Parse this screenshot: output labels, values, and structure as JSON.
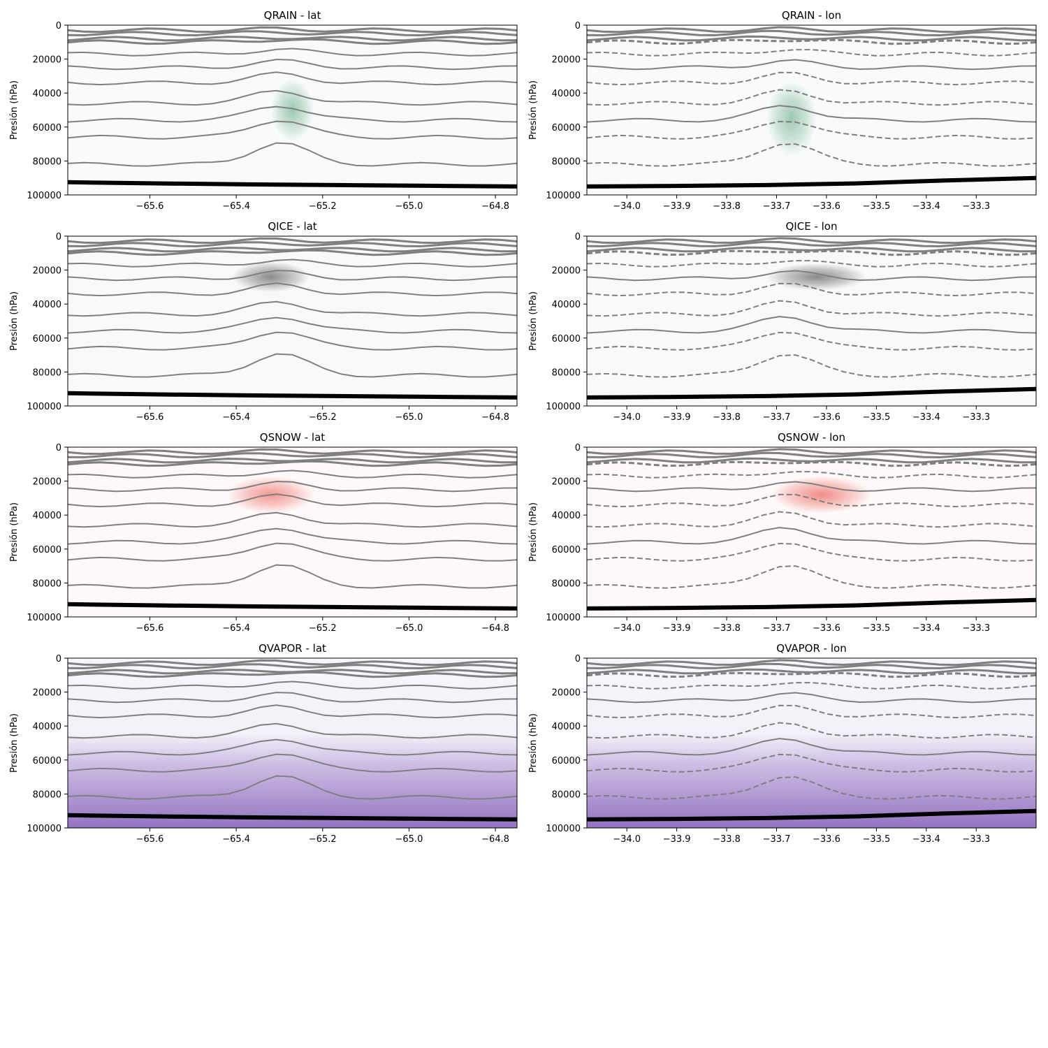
{
  "chart_data": [
    {
      "type": "contour",
      "title": "QRAIN - lat",
      "ylabel": "Presión (hPa)",
      "xlim": [
        -65.79,
        -64.75
      ],
      "ylim": [
        100000,
        0
      ],
      "x_ticks": [
        -65.6,
        -65.4,
        -65.2,
        -65.0,
        -64.8
      ],
      "x_tick_labels": [
        "−65.6",
        "−65.4",
        "−65.2",
        "−65.0",
        "−64.8"
      ],
      "y_ticks": [
        0,
        20000,
        40000,
        60000,
        80000,
        100000
      ],
      "y_tick_labels": [
        "0",
        "20000",
        "40000",
        "60000",
        "80000",
        "100000"
      ],
      "colormap": "#2e8b57",
      "fill_peak": {
        "x": -65.27,
        "y": 50000,
        "rx": 0.05,
        "ry": 18000,
        "intensity": 0.45
      },
      "surface_y": [
        92500,
        93200,
        93800,
        94200,
        94600,
        95000
      ],
      "contour_style": "solid",
      "contour_levels_y": [
        3000,
        5000,
        8000,
        10000,
        17000,
        25000,
        34000,
        46000,
        56000,
        66000,
        82000
      ],
      "convective_x": -65.3
    },
    {
      "type": "contour",
      "title": "QRAIN - lon",
      "ylabel": "Presión (hPa)",
      "xlim": [
        -34.08,
        -33.18
      ],
      "ylim": [
        100000,
        0
      ],
      "x_ticks": [
        -34.0,
        -33.9,
        -33.8,
        -33.7,
        -33.6,
        -33.5,
        -33.4,
        -33.3
      ],
      "x_tick_labels": [
        "−34.0",
        "−33.9",
        "−33.8",
        "−33.7",
        "−33.6",
        "−33.5",
        "−33.4",
        "−33.3"
      ],
      "y_ticks": [
        0,
        20000,
        40000,
        60000,
        80000,
        100000
      ],
      "y_tick_labels": [
        "0",
        "20000",
        "40000",
        "60000",
        "80000",
        "100000"
      ],
      "colormap": "#2e8b57",
      "fill_peak": {
        "x": -33.67,
        "y": 55000,
        "rx": 0.05,
        "ry": 22000,
        "intensity": 0.45
      },
      "surface_y": [
        95000,
        94700,
        94200,
        93200,
        91500,
        90000
      ],
      "contour_style": "dashed",
      "contour_levels_y": [
        3000,
        5000,
        8000,
        10000,
        17000,
        25000,
        34000,
        46000,
        56000,
        66000,
        82000
      ],
      "convective_x": -33.68
    },
    {
      "type": "contour",
      "title": "QICE - lat",
      "ylabel": "Presión (hPa)",
      "xlim": [
        -65.79,
        -64.75
      ],
      "ylim": [
        100000,
        0
      ],
      "x_ticks": [
        -65.6,
        -65.4,
        -65.2,
        -65.0,
        -64.8
      ],
      "x_tick_labels": [
        "−65.6",
        "−65.4",
        "−65.2",
        "−65.0",
        "−64.8"
      ],
      "y_ticks": [
        0,
        20000,
        40000,
        60000,
        80000,
        100000
      ],
      "y_tick_labels": [
        "0",
        "20000",
        "40000",
        "60000",
        "80000",
        "100000"
      ],
      "colormap": "#404040",
      "fill_peak": {
        "x": -65.32,
        "y": 24000,
        "rx": 0.09,
        "ry": 9000,
        "intensity": 0.6
      },
      "surface_y": [
        92500,
        93200,
        93800,
        94200,
        94600,
        95000
      ],
      "contour_style": "solid",
      "contour_levels_y": [
        3000,
        5000,
        8000,
        10000,
        17000,
        25000,
        34000,
        46000,
        56000,
        66000,
        82000
      ],
      "convective_x": -65.3
    },
    {
      "type": "contour",
      "title": "QICE - lon",
      "ylabel": "Presión (hPa)",
      "xlim": [
        -34.08,
        -33.18
      ],
      "ylim": [
        100000,
        0
      ],
      "x_ticks": [
        -34.0,
        -33.9,
        -33.8,
        -33.7,
        -33.6,
        -33.5,
        -33.4,
        -33.3
      ],
      "x_tick_labels": [
        "−34.0",
        "−33.9",
        "−33.8",
        "−33.7",
        "−33.6",
        "−33.5",
        "−33.4",
        "−33.3"
      ],
      "y_ticks": [
        0,
        20000,
        40000,
        60000,
        80000,
        100000
      ],
      "y_tick_labels": [
        "0",
        "20000",
        "40000",
        "60000",
        "80000",
        "100000"
      ],
      "colormap": "#404040",
      "fill_peak": {
        "x": -33.62,
        "y": 24000,
        "rx": 0.1,
        "ry": 8000,
        "intensity": 0.6
      },
      "surface_y": [
        95000,
        94700,
        94200,
        93200,
        91500,
        90000
      ],
      "contour_style": "dashed",
      "contour_levels_y": [
        3000,
        5000,
        8000,
        10000,
        17000,
        25000,
        34000,
        46000,
        56000,
        66000,
        82000
      ],
      "convective_x": -33.68
    },
    {
      "type": "contour",
      "title": "QSNOW - lat",
      "ylabel": "Presión (hPa)",
      "xlim": [
        -65.79,
        -64.75
      ],
      "ylim": [
        100000,
        0
      ],
      "x_ticks": [
        -65.6,
        -65.4,
        -65.2,
        -65.0,
        -64.8
      ],
      "x_tick_labels": [
        "−65.6",
        "−65.4",
        "−65.2",
        "−65.0",
        "−64.8"
      ],
      "y_ticks": [
        0,
        20000,
        40000,
        60000,
        80000,
        100000
      ],
      "y_tick_labels": [
        "0",
        "20000",
        "40000",
        "60000",
        "80000",
        "100000"
      ],
      "colormap": "#e8453c",
      "fill_peak": {
        "x": -65.32,
        "y": 28000,
        "rx": 0.1,
        "ry": 11000,
        "intensity": 0.55
      },
      "surface_y": [
        92500,
        93200,
        93800,
        94200,
        94600,
        95000
      ],
      "contour_style": "solid",
      "contour_levels_y": [
        3000,
        5000,
        8000,
        10000,
        17000,
        25000,
        34000,
        46000,
        56000,
        66000,
        82000
      ],
      "convective_x": -65.3
    },
    {
      "type": "contour",
      "title": "QSNOW - lon",
      "ylabel": "Presión (hPa)",
      "xlim": [
        -34.08,
        -33.18
      ],
      "ylim": [
        100000,
        0
      ],
      "x_ticks": [
        -34.0,
        -33.9,
        -33.8,
        -33.7,
        -33.6,
        -33.5,
        -33.4,
        -33.3
      ],
      "x_tick_labels": [
        "−34.0",
        "−33.9",
        "−33.8",
        "−33.7",
        "−33.6",
        "−33.5",
        "−33.4",
        "−33.3"
      ],
      "y_ticks": [
        0,
        20000,
        40000,
        60000,
        80000,
        100000
      ],
      "y_tick_labels": [
        "0",
        "20000",
        "40000",
        "60000",
        "80000",
        "100000"
      ],
      "colormap": "#e8453c",
      "fill_peak": {
        "x": -33.61,
        "y": 28000,
        "rx": 0.1,
        "ry": 11000,
        "intensity": 0.6
      },
      "surface_y": [
        95000,
        94700,
        94200,
        93200,
        91500,
        90000
      ],
      "contour_style": "dashed",
      "contour_levels_y": [
        3000,
        5000,
        8000,
        10000,
        17000,
        25000,
        34000,
        46000,
        56000,
        66000,
        82000
      ],
      "convective_x": -33.68
    },
    {
      "type": "contour",
      "title": "QVAPOR - lat",
      "ylabel": "Presión (hPa)",
      "xlim": [
        -65.79,
        -64.75
      ],
      "ylim": [
        100000,
        0
      ],
      "x_ticks": [
        -65.6,
        -65.4,
        -65.2,
        -65.0,
        -64.8
      ],
      "x_tick_labels": [
        "−65.6",
        "−65.4",
        "−65.2",
        "−65.0",
        "−64.8"
      ],
      "y_ticks": [
        0,
        20000,
        40000,
        60000,
        80000,
        100000
      ],
      "y_tick_labels": [
        "0",
        "20000",
        "40000",
        "60000",
        "80000",
        "100000"
      ],
      "colormap": "#7a52b3",
      "vertical_gradient": true,
      "surface_y": [
        92500,
        93200,
        93800,
        94200,
        94600,
        95000
      ],
      "contour_style": "solid",
      "contour_levels_y": [
        3000,
        5000,
        8000,
        10000,
        17000,
        25000,
        34000,
        46000,
        56000,
        66000,
        82000
      ],
      "convective_x": -65.3
    },
    {
      "type": "contour",
      "title": "QVAPOR - lon",
      "ylabel": "Presión (hPa)",
      "xlim": [
        -34.08,
        -33.18
      ],
      "ylim": [
        100000,
        0
      ],
      "x_ticks": [
        -34.0,
        -33.9,
        -33.8,
        -33.7,
        -33.6,
        -33.5,
        -33.4,
        -33.3
      ],
      "x_tick_labels": [
        "−34.0",
        "−33.9",
        "−33.8",
        "−33.7",
        "−33.6",
        "−33.5",
        "−33.4",
        "−33.3"
      ],
      "y_ticks": [
        0,
        20000,
        40000,
        60000,
        80000,
        100000
      ],
      "y_tick_labels": [
        "0",
        "20000",
        "40000",
        "60000",
        "80000",
        "100000"
      ],
      "colormap": "#7a52b3",
      "vertical_gradient": true,
      "surface_y": [
        95000,
        94700,
        94200,
        93200,
        91500,
        90000
      ],
      "contour_style": "dashed",
      "contour_levels_y": [
        3000,
        5000,
        8000,
        10000,
        17000,
        25000,
        34000,
        46000,
        56000,
        66000,
        82000
      ],
      "convective_x": -33.68
    }
  ]
}
